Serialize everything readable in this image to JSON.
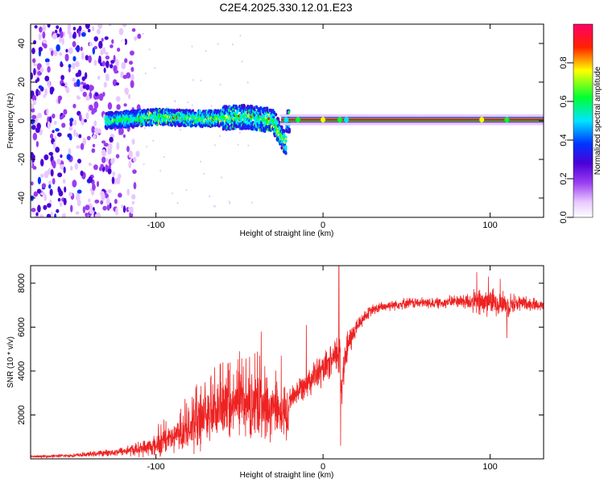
{
  "title": "C2E4.2025.330.12.01.E23",
  "colors": {
    "snr_line": "#ee2222",
    "colormap": [
      "#ffffff",
      "#e8c8ff",
      "#9a3cf0",
      "#4b00d8",
      "#0033ff",
      "#00e5ff",
      "#00ff33",
      "#ffff00",
      "#ff0000",
      "#ff0066"
    ]
  },
  "chart_data": [
    {
      "type": "heatmap",
      "xlabel": "Height of straight line (km)",
      "ylabel": "Frequency (Hz)",
      "xlim": [
        -175,
        132
      ],
      "ylim": [
        -50,
        50
      ],
      "xticks": [
        -100,
        0,
        100
      ],
      "yticks": [
        -40,
        -20,
        0,
        20,
        40
      ],
      "colorbar": {
        "label": "Normalized spectral amplitude",
        "range": [
          0,
          1
        ],
        "ticks": [
          0.0,
          0.2,
          0.4,
          0.6,
          0.8
        ]
      },
      "features": {
        "noise_region_km": [
          -175,
          -110
        ],
        "scattered_band_km": [
          -130,
          -20
        ],
        "scattered_band_center_hz": [
          [
            -130,
            0
          ],
          [
            -100,
            2
          ],
          [
            -70,
            1
          ],
          [
            -45,
            2
          ],
          [
            -30,
            0
          ],
          [
            -22,
            -12
          ]
        ],
        "tone_line_km": [
          -25,
          132
        ],
        "tone_line_freq_hz": 0.5
      }
    },
    {
      "type": "line",
      "xlabel": "Height of straight line (km)",
      "ylabel": "SNR (10 * v/v)",
      "xlim": [
        -175,
        132
      ],
      "ylim": [
        0,
        8800
      ],
      "xticks": [
        -100,
        0,
        100
      ],
      "yticks": [
        2000,
        4000,
        6000,
        8000
      ],
      "series": [
        {
          "name": "SNR",
          "x": [
            -175,
            -150,
            -125,
            -110,
            -100,
            -90,
            -80,
            -70,
            -60,
            -50,
            -45,
            -40,
            -35,
            -30,
            -25,
            -21,
            -20,
            -15,
            -10,
            -5,
            0,
            5,
            8,
            10,
            11,
            12,
            15,
            20,
            25,
            30,
            40,
            50,
            60,
            70,
            80,
            90,
            95,
            100,
            105,
            110,
            120,
            132
          ],
          "base": [
            100,
            150,
            300,
            450,
            600,
            900,
            1300,
            1800,
            2200,
            2400,
            2400,
            2300,
            2200,
            2000,
            1900,
            1500,
            2700,
            3100,
            3500,
            3800,
            4000,
            4400,
            4700,
            5000,
            3000,
            4200,
            5200,
            6000,
            6500,
            6800,
            7000,
            7100,
            7100,
            7100,
            7200,
            7150,
            7100,
            7200,
            7100,
            7050,
            7100,
            7000
          ],
          "amp": [
            60,
            100,
            200,
            400,
            600,
            900,
            1200,
            1400,
            1500,
            1600,
            1700,
            1800,
            1600,
            1500,
            1300,
            1000,
            700,
            700,
            800,
            900,
            900,
            900,
            1100,
            1700,
            2000,
            1200,
            900,
            500,
            350,
            300,
            300,
            300,
            300,
            300,
            350,
            600,
            900,
            700,
            700,
            700,
            400,
            300
          ],
          "spikes": [
            {
              "x": -50,
              "y": 4900
            },
            {
              "x": -37,
              "y": 5800
            },
            {
              "x": -25,
              "y": 4700
            },
            {
              "x": -10,
              "y": 6100
            },
            {
              "x": 9.5,
              "y": 8800
            },
            {
              "x": 10.5,
              "y": 600
            },
            {
              "x": 92,
              "y": 8500
            },
            {
              "x": 99,
              "y": 8300
            },
            {
              "x": 106,
              "y": 8200
            },
            {
              "x": 110,
              "y": 5500
            }
          ]
        }
      ]
    }
  ]
}
